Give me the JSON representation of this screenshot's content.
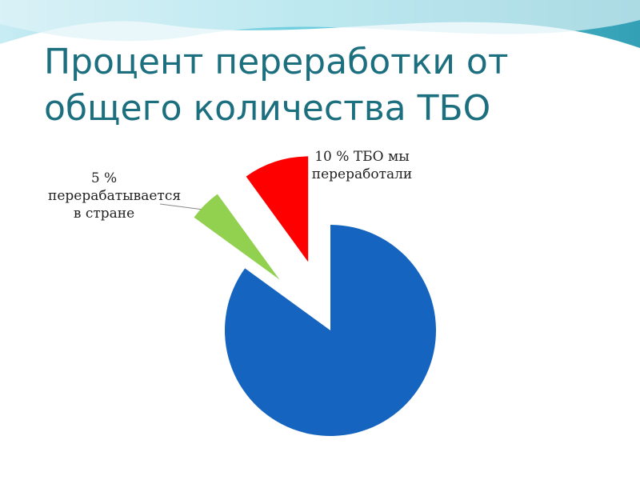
{
  "chart_data": {
    "type": "pie",
    "title": [
      "Процент переработки от",
      "общего количества ТБО"
    ],
    "categories": [
      null,
      "5 % перерабатывается в стране",
      "10 % ТБО мы переработали"
    ],
    "values": [
      85,
      5,
      10
    ],
    "colors": [
      "#1565c0",
      "#92d050",
      "#ff0000"
    ]
  }
}
